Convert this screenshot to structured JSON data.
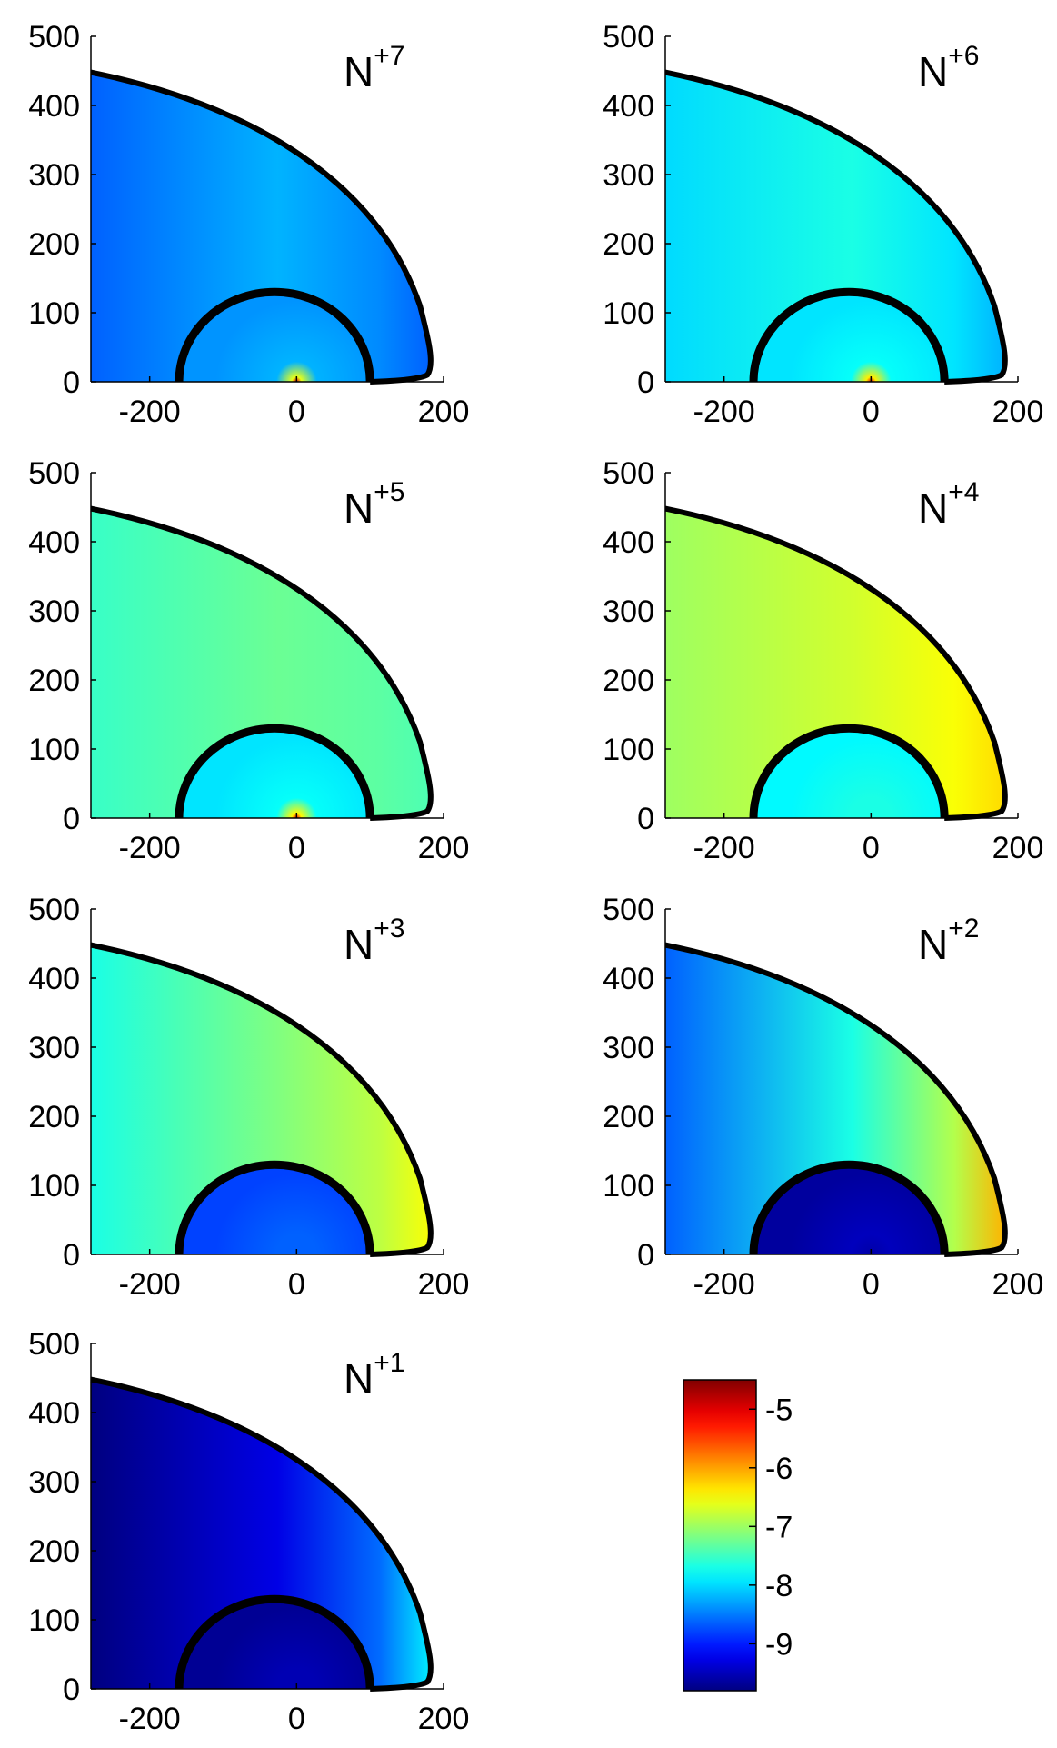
{
  "chart_data": {
    "type": "heatmap",
    "colormap": "jet",
    "shock_color": "#000000",
    "xlim": [
      -280,
      200
    ],
    "ylim": [
      0,
      500
    ],
    "x_ticks": [
      "-200",
      "0",
      "200"
    ],
    "y_ticks": [
      "0",
      "100",
      "200",
      "300",
      "400",
      "500"
    ],
    "x_tick_values": [
      -200,
      0,
      200
    ],
    "y_tick_values": [
      0,
      100,
      200,
      300,
      400,
      500
    ],
    "panels": [
      {
        "label": "N",
        "charge": "+7",
        "base": 0.3,
        "shock": 0.22,
        "inner": 0.3,
        "core": 0.9,
        "gradient": 0.08
      },
      {
        "label": "N",
        "charge": "+6",
        "base": 0.4,
        "shock": 0.3,
        "inner": 0.38,
        "core": 0.9,
        "gradient": 0.06
      },
      {
        "label": "N",
        "charge": "+5",
        "base": 0.48,
        "shock": 0.45,
        "inner": 0.38,
        "core": 0.88,
        "gradient": 0.05
      },
      {
        "label": "N",
        "charge": "+4",
        "base": 0.58,
        "shock": 0.66,
        "inner": 0.4,
        "core": 0.4,
        "gradient": 0.05
      },
      {
        "label": "N",
        "charge": "+3",
        "base": 0.5,
        "shock": 0.62,
        "inner": 0.22,
        "core": 0.22,
        "gradient": 0.1
      },
      {
        "label": "N",
        "charge": "+2",
        "base": 0.4,
        "shock": 0.7,
        "inner": 0.06,
        "core": 0.03,
        "gradient": 0.18
      },
      {
        "label": "N",
        "charge": "+1",
        "base": 0.1,
        "shock": 0.36,
        "inner": 0.05,
        "core": 0.05,
        "gradient": 0.22
      }
    ],
    "colorbar": {
      "ticks": [
        "-5",
        "-6",
        "-7",
        "-8",
        "-9"
      ],
      "tick_values": [
        -5,
        -6,
        -7,
        -8,
        -9
      ],
      "range": [
        -9.8,
        -4.5
      ]
    }
  }
}
